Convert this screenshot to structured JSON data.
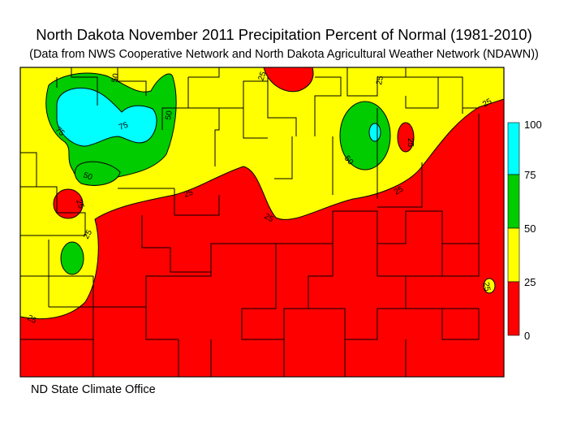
{
  "title": "North Dakota November 2011 Precipitation Percent of Normal (1981-2010)",
  "subtitle": "(Data from NWS Cooperative Network and North Dakota Agricultural Weather Network (NDAWN))",
  "credit": "ND State Climate Office",
  "legend": {
    "ticks": [
      "100",
      "75",
      "50",
      "25",
      "0"
    ],
    "bands": [
      {
        "range": "75-100",
        "color": "#00ffff"
      },
      {
        "range": "50-75",
        "color": "#00cc00"
      },
      {
        "range": "25-50",
        "color": "#ffff00"
      },
      {
        "range": "0-25",
        "color": "#ff0000"
      }
    ]
  },
  "contour_labels": [
    "50",
    "25",
    "25",
    "25",
    "75",
    "75",
    "50",
    "50",
    "25",
    "50",
    "25",
    "25",
    "25",
    "25",
    "25",
    "25",
    "25"
  ],
  "colors": {
    "cyan": "#00ffff",
    "green": "#00cc00",
    "yellow": "#ffff00",
    "red": "#ff0000",
    "border": "#000000"
  }
}
